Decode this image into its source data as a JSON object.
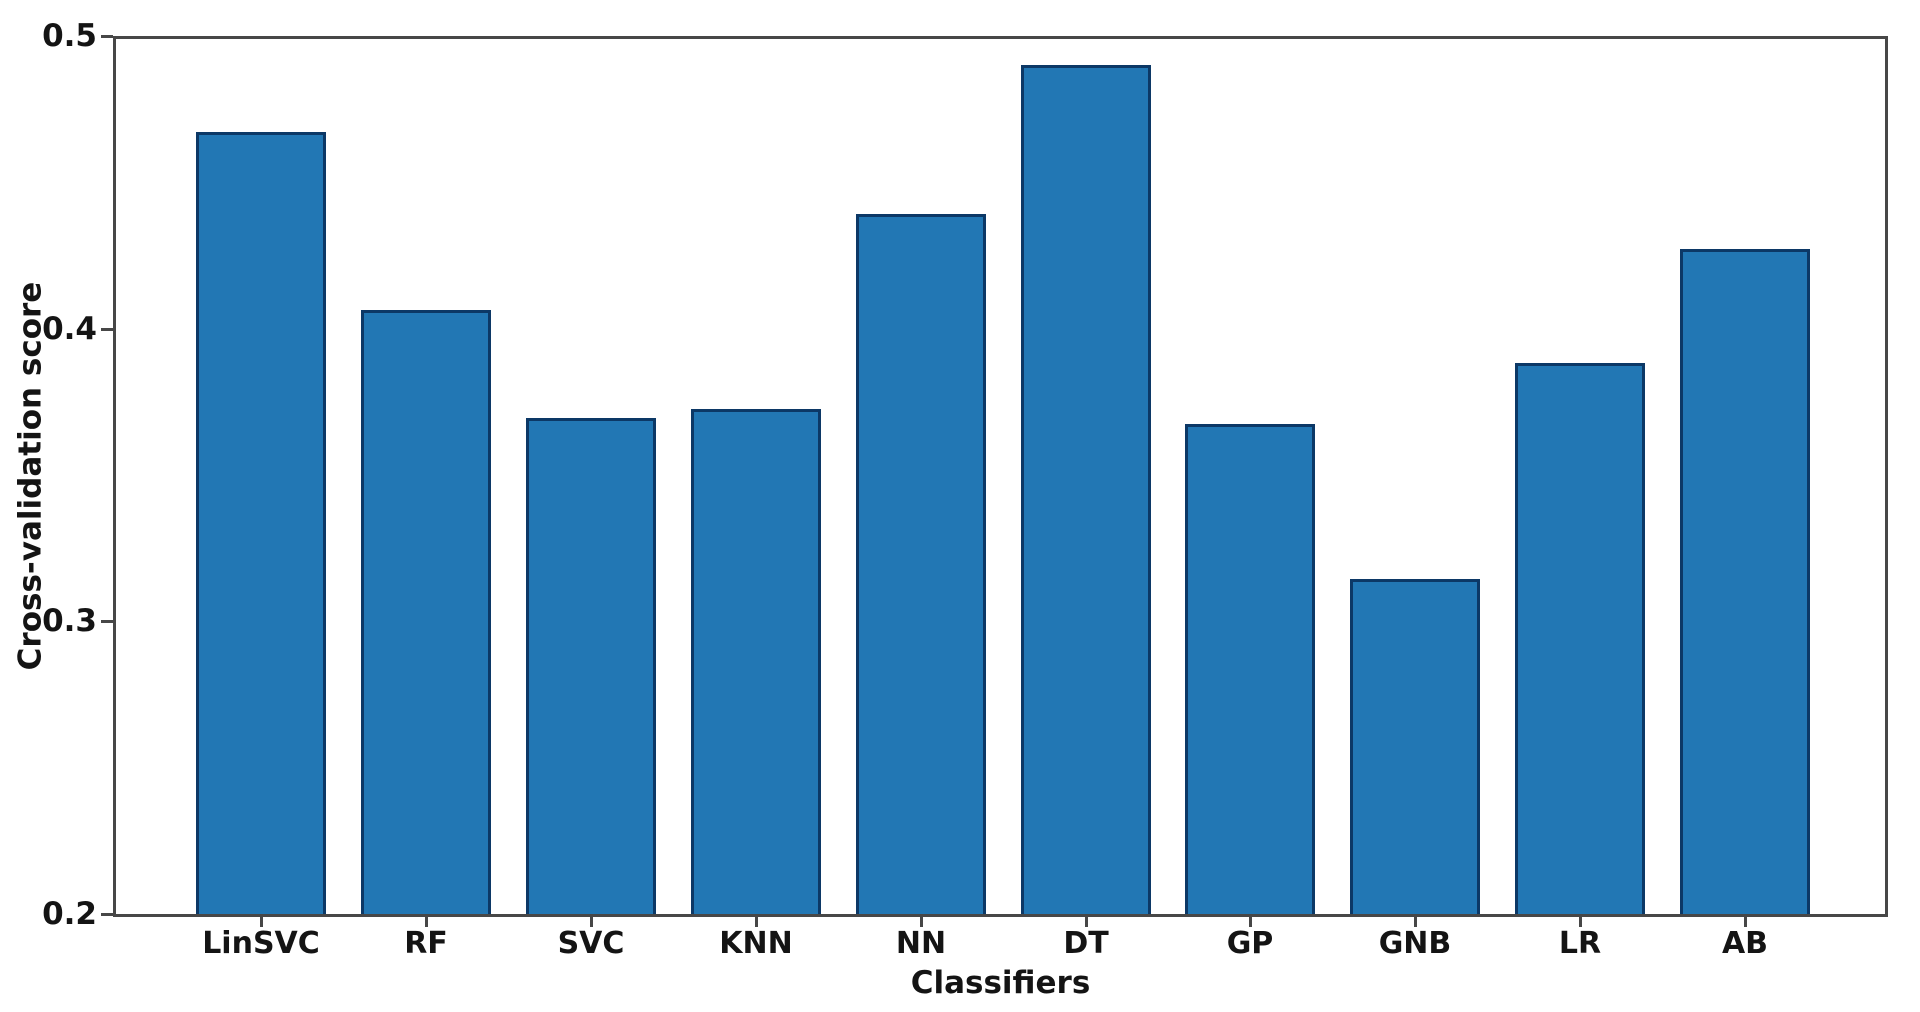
{
  "chart_data": {
    "type": "bar",
    "title": "",
    "xlabel": "Classifiers",
    "ylabel": "Cross-validation score",
    "categories": [
      "LinSVC",
      "RF",
      "SVC",
      "KNN",
      "NN",
      "DT",
      "GP",
      "GNB",
      "LR",
      "AB"
    ],
    "values": [
      0.468,
      0.407,
      0.37,
      0.373,
      0.44,
      0.491,
      0.368,
      0.315,
      0.389,
      0.428
    ],
    "ylim": [
      0.2,
      0.5
    ],
    "yticks": [
      0.5,
      0.4,
      0.3,
      0.2
    ],
    "ytick_labels": [
      "0.5",
      "0.4",
      "0.3",
      "0.2"
    ],
    "grid": false,
    "legend": null,
    "bar_fill_color": "#2277b4",
    "bar_edge_color": "#0c3866",
    "spine_color": "#474747",
    "text_color": "#141414",
    "background_color": "#ffffff"
  }
}
